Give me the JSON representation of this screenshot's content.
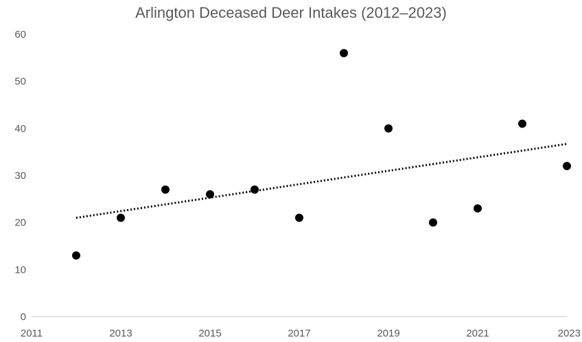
{
  "chart_data": {
    "type": "scatter",
    "title": "Arlington Deceased Deer Intakes (2012–2023)",
    "xlabel": "",
    "ylabel": "",
    "xlim": [
      2011,
      2023
    ],
    "ylim": [
      0,
      60
    ],
    "x_ticks": [
      2011,
      2013,
      2015,
      2017,
      2019,
      2021,
      2023
    ],
    "y_ticks": [
      0,
      10,
      20,
      30,
      40,
      50,
      60
    ],
    "grid": false,
    "legend": "none",
    "series": [
      {
        "x": [
          2012,
          2013,
          2014,
          2015,
          2016,
          2017,
          2018,
          2019,
          2020,
          2021,
          2022,
          2023
        ],
        "y": [
          13,
          21,
          27,
          26,
          27,
          21,
          56,
          40,
          20,
          23,
          41,
          32
        ],
        "color": "#000000"
      }
    ],
    "trendline": {
      "style": "dotted",
      "x": [
        2012,
        2023
      ],
      "y": [
        21,
        36.7
      ],
      "color": "#000000"
    },
    "axis_color": "#d9d9d9",
    "text_color": "#595959"
  }
}
